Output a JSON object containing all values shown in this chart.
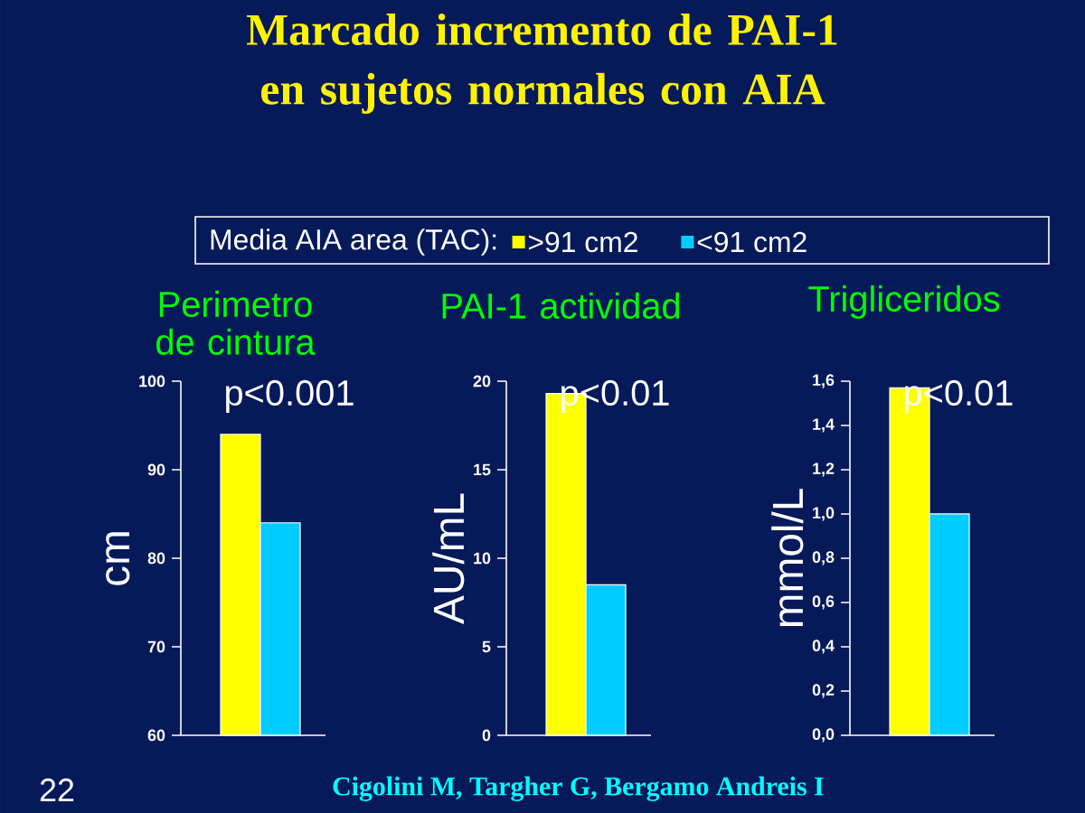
{
  "chart_data": [
    {
      "type": "bar",
      "title": "Perimetro de cintura",
      "ylabel": "cm",
      "categories": [
        null
      ],
      "ylim": [
        60,
        100
      ],
      "yticks": [
        60,
        70,
        80,
        90,
        100
      ],
      "legend": "top",
      "legend_title": "Media AIA area (TAC):",
      "series": [
        {
          "name": ">91 cm2",
          "color": "#ffff00",
          "values": [
            94
          ]
        },
        {
          "name": "<91 cm2",
          "color": "#00ccff",
          "values": [
            84
          ]
        }
      ],
      "annotations": [
        "p<0.001",
        "Marcado incremento de PAI-1 en sujetos  normales con AIA",
        "Cigolini M, Targher G, Bergamo Andreis I",
        "22"
      ]
    },
    {
      "type": "bar",
      "title": "PAI-1 actividad",
      "ylabel": "AU/mL",
      "categories": [
        null
      ],
      "ylim": [
        0,
        20
      ],
      "yticks": [
        0,
        5,
        10,
        15,
        20
      ],
      "series": [
        {
          "color": "#ffff00",
          "values": [
            19.3
          ]
        },
        {
          "color": "#00ccff",
          "values": [
            8.5
          ]
        }
      ],
      "annotations": [
        "p<0.01"
      ]
    },
    {
      "type": "bar",
      "title": "Trigliceridos",
      "ylabel": "mmol/L",
      "categories": [
        null
      ],
      "ylim": [
        0,
        1.6
      ],
      "yticks": [
        {
          "value": 0,
          "label": "0,0"
        },
        {
          "value": 0.2,
          "label": "0,2"
        },
        {
          "value": 0.4,
          "label": "0,4"
        },
        {
          "value": 0.6,
          "label": "0,6"
        },
        {
          "value": 0.8,
          "label": "0,8"
        },
        {
          "value": 1.0,
          "label": "1,0"
        },
        {
          "value": 1.2,
          "label": "1,2"
        },
        {
          "value": 1.4,
          "label": "1,4"
        },
        {
          "value": 1.6,
          "label": "1,6"
        }
      ],
      "series": [
        {
          "color": "#ffff00",
          "values": [
            1.57
          ]
        },
        {
          "color": "#00ccff",
          "values": [
            1.0
          ]
        }
      ],
      "annotations": [
        "p<0.01"
      ]
    }
  ]
}
